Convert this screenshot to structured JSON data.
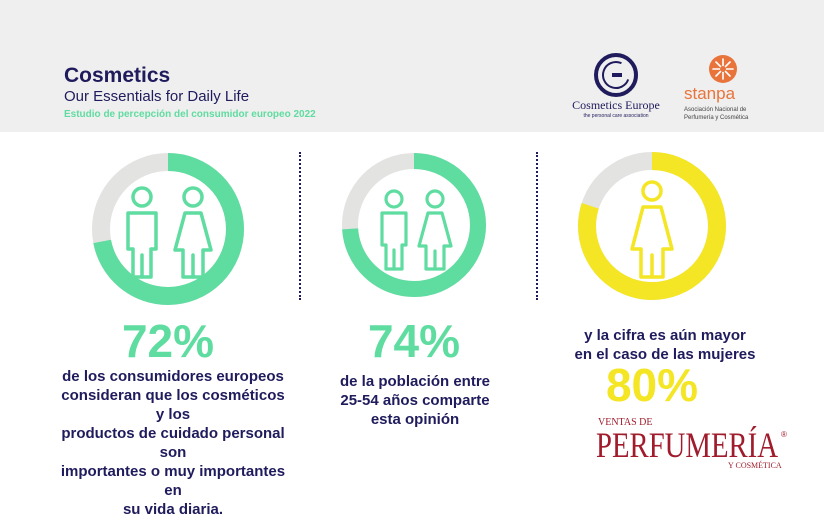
{
  "header": {
    "title": "Cosmetics",
    "subtitle": "Our Essentials for Daily Life",
    "study": "Estudio de percepción del consumidor europeo 2022"
  },
  "logos": {
    "cosmetics_europe": {
      "name": "Cosmetics Europe",
      "tagline": "the personal care association"
    },
    "stanpa": {
      "name": "stanpa",
      "line1": "Asociación Nacional de",
      "line2": "Perfumería y Cosmética"
    }
  },
  "stats": [
    {
      "value": 72,
      "percent_label": "72%",
      "lines": [
        "de los consumidores europeos",
        "consideran que los cosméticos y los",
        "productos de cuidado personal son",
        "importantes o muy importantes en",
        "su vida diaria."
      ]
    },
    {
      "value": 74,
      "percent_label": "74%",
      "lines": [
        "de la población entre",
        "25-54 años comparte",
        "esta opinión"
      ]
    },
    {
      "value": 80,
      "percent_label": "80%",
      "lines": [
        "y la cifra es aún mayor",
        "en el caso de las mujeres"
      ]
    }
  ],
  "publisher": {
    "top": "VENTAS DE",
    "main": "PERFUMERÍA",
    "registered": "®",
    "bottom": "Y COSMÉTICA"
  },
  "colors": {
    "navy": "#1f1b5c",
    "green": "#5fdca0",
    "yellow": "#f4e625",
    "track": "#e3e3e1",
    "orange": "#e8743b",
    "red": "#a01c2c"
  },
  "icons": [
    "man-icon",
    "woman-icon"
  ]
}
